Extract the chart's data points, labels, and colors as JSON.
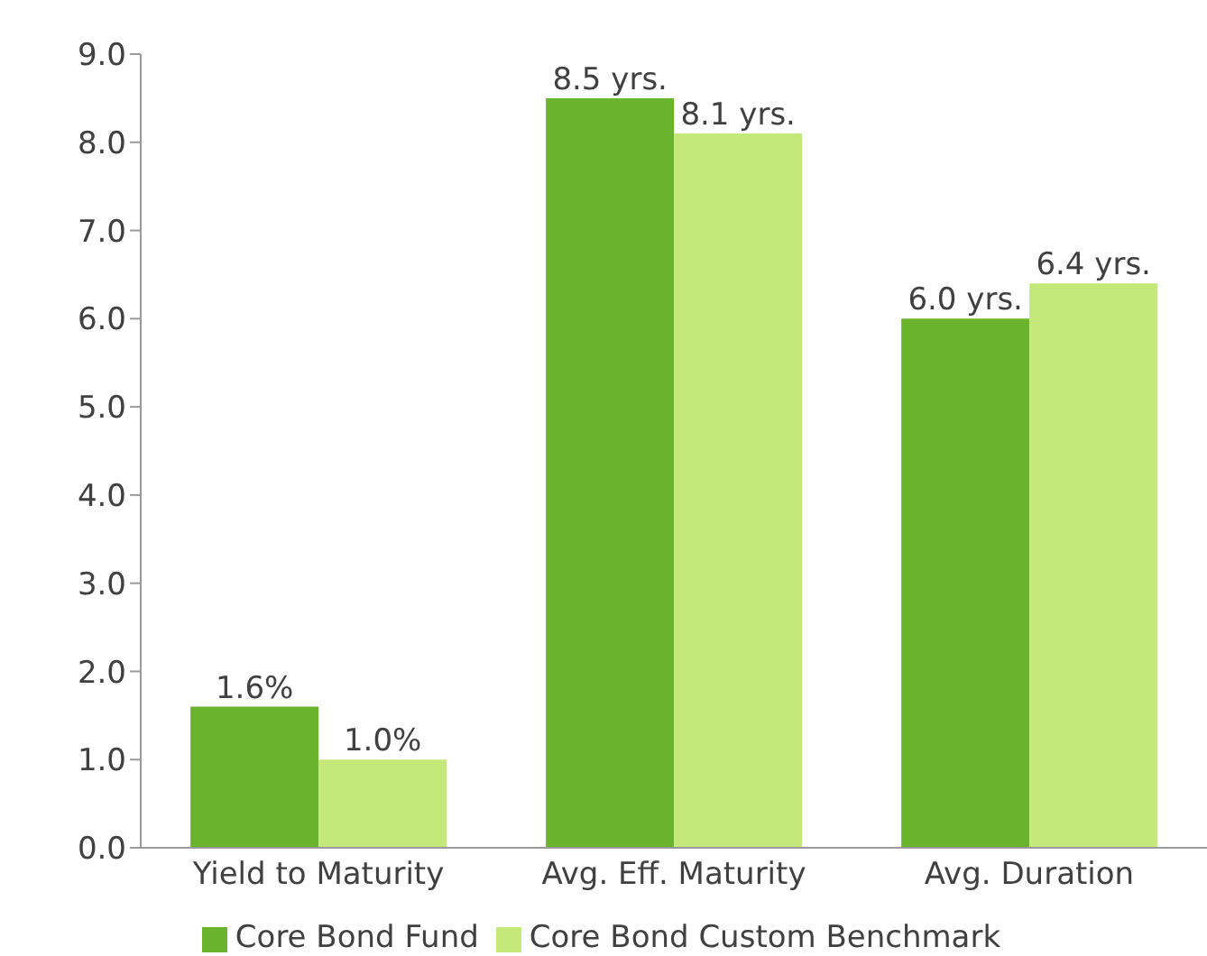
{
  "chart_data": {
    "type": "bar",
    "categories": [
      "Yield to Maturity",
      "Avg. Eff. Maturity",
      "Avg. Duration"
    ],
    "series": [
      {
        "name": "Core Bond Fund",
        "color": "#6ab42d",
        "values": [
          1.6,
          8.5,
          6.0
        ],
        "value_labels": [
          "1.6%",
          "8.5 yrs.",
          "6.0 yrs."
        ]
      },
      {
        "name": "Core Bond Custom Benchmark",
        "color": "#c5e87a",
        "values": [
          1.0,
          8.1,
          6.4
        ],
        "value_labels": [
          "1.0%",
          "8.1 yrs.",
          "6.4 yrs."
        ]
      }
    ],
    "ylim": [
      0,
      9
    ],
    "yticks": [
      {
        "value": 0,
        "label": "0.0"
      },
      {
        "value": 1,
        "label": "1.0"
      },
      {
        "value": 2,
        "label": "2.0"
      },
      {
        "value": 3,
        "label": "3.0"
      },
      {
        "value": 4,
        "label": "4.0"
      },
      {
        "value": 5,
        "label": "5.0"
      },
      {
        "value": 6,
        "label": "6.0"
      },
      {
        "value": 7,
        "label": "7.0"
      },
      {
        "value": 8,
        "label": "8.0"
      },
      {
        "value": 9,
        "label": "9.0"
      }
    ],
    "grid": false,
    "legend": "bottom"
  }
}
